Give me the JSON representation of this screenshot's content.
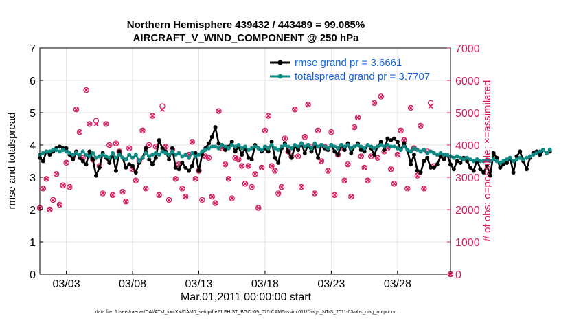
{
  "colors": {
    "rmse": "#000000",
    "spread": "#108a85",
    "obs": "#d81b60",
    "legend_text": "#1565e0"
  },
  "chart_data": {
    "type": "line",
    "title": "Northern Hemisphere 439432 / 443489 = 99.085%",
    "subtitle": "AIRCRAFT_V_WIND_COMPONENT @ 250 hPa",
    "xlabel": "Mar.01,2011 00:00:00 start",
    "ylabel": "rmse and totalspread",
    "ylabel_right": "# of obs: o=possible; ×=assimilated",
    "footnote": "data file: /Users/raeder/DAI/ATM_forcXX/CAM6_setup/f.e21.FHIST_BGC.f09_025.CAM6assim.011/Diags_NTrS_2011-03/obs_diag_output.nc",
    "xlim": [
      1.0,
      32.0
    ],
    "ylim": [
      0,
      7
    ],
    "ylim_right": [
      0,
      7000
    ],
    "grid": true,
    "xticks": [
      {
        "value": 3,
        "label": "03/03"
      },
      {
        "value": 8,
        "label": "03/08"
      },
      {
        "value": 13,
        "label": "03/13"
      },
      {
        "value": 18,
        "label": "03/18"
      },
      {
        "value": 23,
        "label": "03/23"
      },
      {
        "value": 28,
        "label": "03/28"
      }
    ],
    "yticks_left": [
      "0",
      "1",
      "2",
      "3",
      "4",
      "5",
      "6",
      "7"
    ],
    "yticks_right": [
      "0",
      "1000",
      "2000",
      "3000",
      "4000",
      "5000",
      "6000",
      "7000"
    ],
    "legend_position": "top-right",
    "x_start": 1.0,
    "x_step": 0.25,
    "series": [
      {
        "name": "rmse grand pr = 3.6661",
        "marker": "dot",
        "values": [
          3.6,
          3.5,
          3.8,
          3.7,
          3.8,
          3.9,
          3.95,
          3.9,
          3.9,
          3.7,
          3.55,
          3.8,
          3.6,
          3.5,
          3.4,
          3.8,
          3.55,
          3.05,
          3.3,
          3.75,
          3.6,
          3.45,
          3.7,
          3.2,
          3.8,
          3.6,
          3.3,
          3.4,
          3.35,
          3.15,
          3.45,
          3.6,
          3.9,
          3.55,
          3.4,
          3.6,
          4.15,
          3.9,
          3.8,
          3.55,
          3.9,
          3.3,
          3.25,
          3.45,
          3.3,
          3.2,
          3.35,
          3.75,
          3.2,
          3.7,
          3.9,
          4.05,
          4.25,
          4.55,
          4.05,
          4.0,
          3.85,
          3.95,
          4.1,
          3.8,
          3.95,
          3.7,
          3.9,
          3.6,
          3.55,
          4.0,
          3.9,
          3.8,
          3.9,
          3.8,
          4.1,
          3.6,
          3.45,
          3.9,
          4.05,
          3.8,
          3.6,
          3.95,
          3.85,
          4.05,
          3.75,
          4.0,
          3.8,
          3.95,
          3.6,
          4.0,
          3.9,
          3.85,
          4.0,
          3.8,
          3.7,
          4.0,
          3.85,
          4.05,
          3.75,
          3.95,
          4.05,
          3.85,
          3.8,
          4.0,
          3.9,
          3.7,
          3.95,
          4.1,
          3.85,
          4.2,
          4.15,
          4.2,
          4.1,
          3.85,
          4.05,
          3.85,
          3.4,
          3.7,
          3.2,
          3.15,
          3.5,
          3.6,
          3.3,
          3.3,
          3.4,
          3.65,
          3.55,
          3.7,
          3.4,
          3.25,
          3.5,
          3.45,
          3.6,
          3.5,
          3.3,
          3.2,
          3.55,
          3.25,
          3.15,
          3.35,
          3.05,
          3.75,
          3.6,
          3.3,
          3.4,
          3.45,
          3.6,
          3.15,
          3.65,
          3.8,
          3.5,
          3.25,
          3.6,
          3.75,
          3.8,
          3.7,
          3.85,
          3.75,
          3.8
        ]
      },
      {
        "name": "totalspread grand pr = 3.7707",
        "marker": "dot",
        "values": [
          3.7,
          3.75,
          3.8,
          3.8,
          3.85,
          3.85,
          3.8,
          3.85,
          3.8,
          3.75,
          3.7,
          3.75,
          3.7,
          3.8,
          3.7,
          3.65,
          3.75,
          3.6,
          3.65,
          3.7,
          3.65,
          3.6,
          3.75,
          3.6,
          3.7,
          3.6,
          3.55,
          3.7,
          3.6,
          3.7,
          3.5,
          3.6,
          3.75,
          3.65,
          3.7,
          3.75,
          3.7,
          3.8,
          3.75,
          3.7,
          3.8,
          3.7,
          3.75,
          3.65,
          3.7,
          3.6,
          3.75,
          3.65,
          3.7,
          3.8,
          3.85,
          3.9,
          3.95,
          3.95,
          3.9,
          4.0,
          3.95,
          3.9,
          4.0,
          3.95,
          4.0,
          3.9,
          3.95,
          3.85,
          3.9,
          3.95,
          3.9,
          3.85,
          3.95,
          3.9,
          4.0,
          3.9,
          3.85,
          3.95,
          4.0,
          3.95,
          3.9,
          4.0,
          3.95,
          4.05,
          3.95,
          4.0,
          3.9,
          4.05,
          3.95,
          4.0,
          3.95,
          3.9,
          4.0,
          3.95,
          3.9,
          4.0,
          3.95,
          4.0,
          3.9,
          3.95,
          4.0,
          3.95,
          3.9,
          4.0,
          3.95,
          3.9,
          3.95,
          4.0,
          3.95,
          4.0,
          3.95,
          3.95,
          3.9,
          3.85,
          3.95,
          3.85,
          3.8,
          3.9,
          3.85,
          3.8,
          3.85,
          3.75,
          3.8,
          3.75,
          3.7,
          3.75,
          3.7,
          3.7,
          3.65,
          3.6,
          3.65,
          3.6,
          3.55,
          3.6,
          3.55,
          3.5,
          3.55,
          3.5,
          3.5,
          3.55,
          3.5,
          3.55,
          3.5,
          3.45,
          3.5,
          3.55,
          3.6,
          3.5,
          3.55,
          3.6,
          3.55,
          3.6,
          3.65,
          3.7,
          3.75,
          3.8,
          3.85,
          3.75,
          3.85
        ]
      }
    ],
    "obs_possible": [
      2050,
      2650,
      2950,
      2000,
      2300,
      3100,
      2150,
      2750,
      3450,
      2700,
      3650,
      5100,
      4400,
      3600,
      5700,
      4650,
      3550,
      4750,
      3350,
      2500,
      4650,
      4000,
      2450,
      4050,
      3800,
      2550,
      2250,
      3900,
      3250,
      2900,
      3500,
      4450,
      2650,
      4000,
      4900,
      3950,
      2450,
      5200,
      3950,
      2300,
      3850,
      2950,
      3400,
      2650,
      2400,
      3700,
      4100,
      2950,
      3200,
      2300,
      3650,
      3600,
      2400,
      2200,
      5050,
      3900,
      3400,
      2950,
      2350,
      3600,
      3550,
      3350,
      2800,
      3350,
      2700,
      3100,
      2050,
      3300,
      4450,
      4900,
      3350,
      3200,
      2500,
      2700,
      4200,
      3800,
      3650,
      5100,
      3650,
      2700,
      4250,
      5250,
      3950,
      2500,
      4450,
      3500,
      3950,
      3200,
      4400,
      2450,
      3700,
      3900,
      2900,
      3400,
      2400,
      4550,
      4850,
      3650,
      3300,
      2900,
      3650,
      5300,
      3600,
      5500,
      3800,
      3900,
      3250,
      2800,
      3700,
      4450,
      4150,
      2650,
      5150,
      3900,
      3050,
      4600,
      2650,
      3800,
      5300,
      3350
    ],
    "obs_assimilated": [
      2050,
      2650,
      2950,
      2000,
      2300,
      3100,
      2150,
      2750,
      3450,
      2700,
      3650,
      5100,
      4400,
      3600,
      5700,
      4650,
      3550,
      4650,
      3350,
      2500,
      4650,
      4000,
      2450,
      4050,
      3800,
      2550,
      2250,
      3900,
      3250,
      2900,
      3500,
      4450,
      2650,
      4000,
      4900,
      3950,
      2450,
      5100,
      3950,
      2300,
      3850,
      2950,
      3400,
      2650,
      2400,
      3700,
      4100,
      2950,
      3200,
      2300,
      3650,
      3600,
      2400,
      2200,
      5050,
      3900,
      3400,
      2950,
      2350,
      3600,
      3550,
      3350,
      2800,
      3350,
      2700,
      3100,
      2050,
      3300,
      4450,
      4900,
      3350,
      3200,
      2500,
      2700,
      4200,
      3800,
      3650,
      5100,
      3650,
      2700,
      4250,
      5250,
      3950,
      2500,
      4450,
      3500,
      3950,
      3200,
      4400,
      2450,
      3700,
      3900,
      2900,
      3400,
      2400,
      4550,
      4850,
      3650,
      3300,
      2900,
      3650,
      5300,
      3600,
      5500,
      3800,
      3900,
      3250,
      2800,
      3700,
      4450,
      4150,
      2650,
      5150,
      3900,
      3050,
      4600,
      2650,
      3800,
      5200,
      3350
    ],
    "obs_x_start": 1.0,
    "obs_x_step": 0.25,
    "obs_last": {
      "x": 32.0,
      "count": 0
    }
  }
}
